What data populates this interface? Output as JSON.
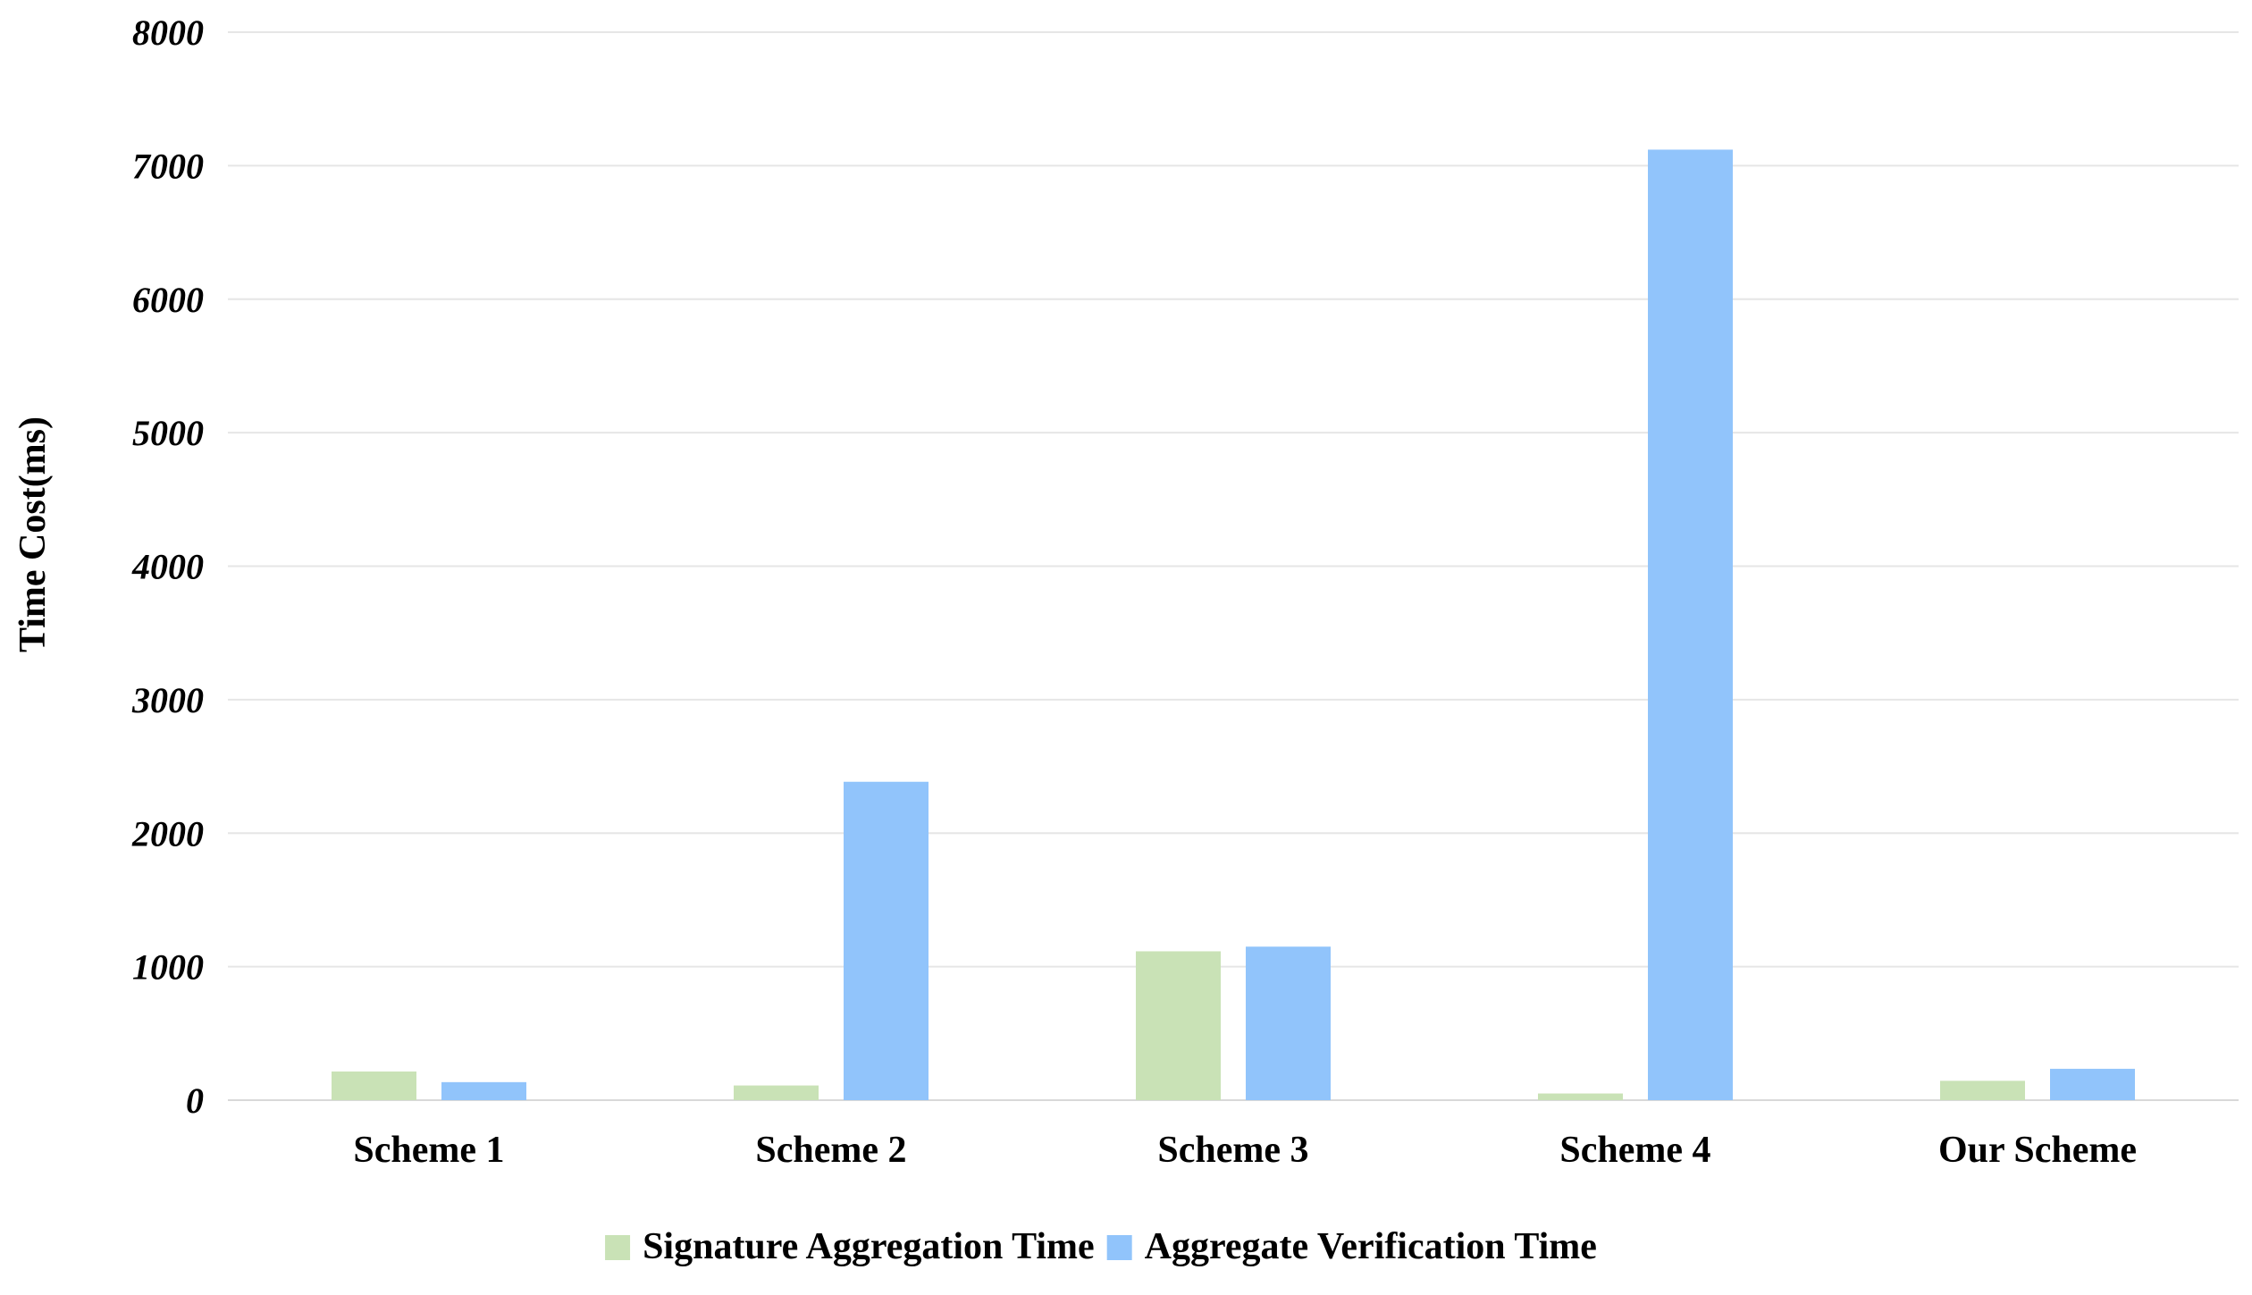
{
  "chart_data": {
    "type": "bar",
    "title": "",
    "xlabel": "",
    "ylabel": "Time Cost(ms)",
    "categories": [
      "Scheme 1",
      "Scheme 2",
      "Scheme 3",
      "Scheme 4",
      "Our Scheme"
    ],
    "series": [
      {
        "name": "Signature Aggregation Time",
        "color": "#c9e2b6",
        "values": [
          215,
          110,
          1115,
          50,
          145
        ]
      },
      {
        "name": "Aggregate Verification Time",
        "color": "#91c4fb",
        "values": [
          135,
          2385,
          1150,
          7120,
          235
        ]
      }
    ],
    "ylim": [
      0,
      8000
    ],
    "yticks": [
      0,
      1000,
      2000,
      3000,
      4000,
      5000,
      6000,
      7000,
      8000
    ],
    "grid": true,
    "legend_position": "bottom-center"
  }
}
